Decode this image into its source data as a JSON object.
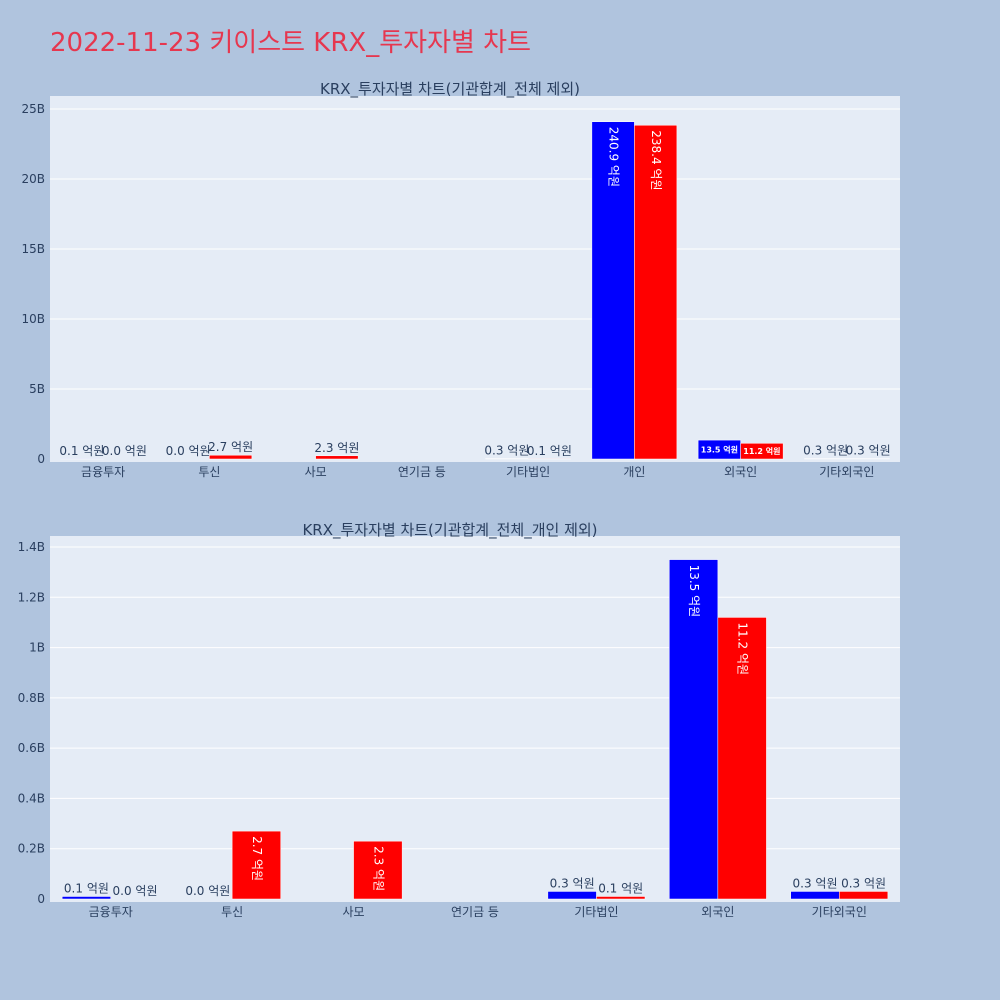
{
  "page": {
    "title": "2022-11-23 키이스트 KRX_투자자별 차트",
    "background": "#b0c4de",
    "title_color": "#e6374f"
  },
  "chart_data": [
    {
      "type": "bar",
      "title": "KRX_투자자별 차트(기관합계_전체 제외)",
      "categories": [
        "금융투자",
        "투신",
        "사모",
        "연기금 등",
        "기타법인",
        "개인",
        "외국인",
        "기타외국인"
      ],
      "series": [
        {
          "color": "#0000ff",
          "values": [
            10000000,
            0,
            0,
            0,
            30000000,
            24090000000,
            1350000000,
            30000000
          ],
          "labels": [
            "0.1 억원",
            "0.0 억원",
            "",
            "",
            "0.3 억원",
            "240.9 억원",
            "13.5 억원",
            "0.3 억원"
          ]
        },
        {
          "color": "#ff0000",
          "values": [
            0,
            270000000,
            230000000,
            0,
            10000000,
            23840000000,
            1120000000,
            30000000
          ],
          "labels": [
            "0.0 억원",
            "2.7 억원",
            "2.3 억원",
            "",
            "0.1 억원",
            "238.4 억원",
            "11.2 억원",
            "0.3 억원"
          ]
        }
      ],
      "ylim": [
        0,
        25500000000
      ],
      "yticks": [
        0,
        5000000000,
        10000000000,
        15000000000,
        20000000000,
        25000000000
      ],
      "ytick_labels": [
        "0",
        "5B",
        "10B",
        "15B",
        "20B",
        "25B"
      ],
      "grid": true,
      "plot_background": "#e5ecf6"
    },
    {
      "type": "bar",
      "title": "KRX_투자자별 차트(기관합계_전체_개인 제외)",
      "categories": [
        "금융투자",
        "투신",
        "사모",
        "연기금 등",
        "기타법인",
        "외국인",
        "기타외국인"
      ],
      "series": [
        {
          "color": "#0000ff",
          "values": [
            10000000,
            0,
            0,
            0,
            30000000,
            1350000000,
            30000000
          ],
          "labels": [
            "0.1 억원",
            "0.0 억원",
            "",
            "",
            "0.3 억원",
            "13.5 억원",
            "0.3 억원"
          ]
        },
        {
          "color": "#ff0000",
          "values": [
            0,
            270000000,
            230000000,
            0,
            10000000,
            1120000000,
            30000000
          ],
          "labels": [
            "0.0 억원",
            "2.7 억원",
            "2.3 억원",
            "",
            "0.1 억원",
            "11.2 억원",
            "0.3 억원"
          ]
        }
      ],
      "ylim": [
        0,
        1420000000
      ],
      "yticks": [
        0,
        200000000,
        400000000,
        600000000,
        800000000,
        1000000000,
        1200000000,
        1400000000
      ],
      "ytick_labels": [
        "0",
        "0.2B",
        "0.4B",
        "0.6B",
        "0.8B",
        "1B",
        "1.2B",
        "1.4B"
      ],
      "grid": true,
      "plot_background": "#e5ecf6"
    }
  ]
}
